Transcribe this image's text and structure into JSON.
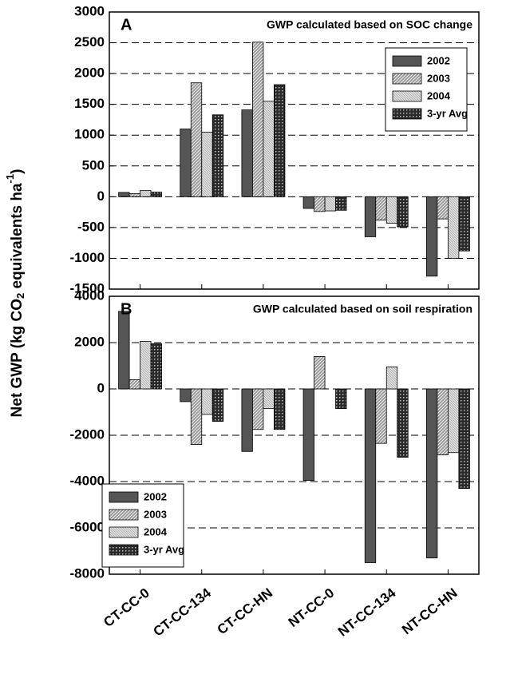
{
  "y_label": {
    "text1": "Net GWP (kg CO",
    "sub": "2",
    "text2": " equivalents ha",
    "sup": "-1",
    "text3": ")"
  },
  "chart_data": [
    {
      "type": "bar",
      "panel": "A",
      "title": "GWP calculated based on SOC change",
      "ylim": [
        -1500,
        3000
      ],
      "yticks": [
        -1500,
        -1000,
        -500,
        0,
        500,
        1000,
        1500,
        2000,
        2500,
        3000
      ],
      "grid": true,
      "legend": "upper right",
      "series": [
        {
          "name": "2002",
          "color": "#555555",
          "hatch": "solid",
          "values": [
            70,
            1100,
            1410,
            -190,
            -650,
            -1290
          ]
        },
        {
          "name": "2003",
          "color": "#9a9a9a",
          "hatch": "diag",
          "values": [
            50,
            1850,
            2510,
            -240,
            -380,
            -360
          ]
        },
        {
          "name": "2004",
          "color": "#b4b4b4",
          "hatch": "diag-fine",
          "values": [
            100,
            1050,
            1550,
            -230,
            -430,
            -1000
          ]
        },
        {
          "name": "3-yr Avg",
          "color": "#2a2a2a",
          "hatch": "dots",
          "values": [
            75,
            1330,
            1820,
            -220,
            -490,
            -880
          ]
        }
      ]
    },
    {
      "type": "bar",
      "panel": "B",
      "title": "GWP calculated based on soil respiration",
      "categories": [
        "CT-CC-0",
        "CT-CC-134",
        "CT-CC-HN",
        "NT-CC-0",
        "NT-CC-134",
        "NT-CC-HN"
      ],
      "ylim": [
        -8000,
        4000
      ],
      "yticks": [
        -8000,
        -6000,
        -4000,
        -2000,
        0,
        2000,
        4000
      ],
      "grid": true,
      "legend": "lower left",
      "series": [
        {
          "name": "2002",
          "color": "#555555",
          "hatch": "solid",
          "values": [
            3350,
            -550,
            -2700,
            -3950,
            -7500,
            -7300
          ]
        },
        {
          "name": "2003",
          "color": "#9a9a9a",
          "hatch": "diag",
          "values": [
            400,
            -2400,
            -1750,
            1400,
            -2350,
            -2850
          ]
        },
        {
          "name": "2004",
          "color": "#b4b4b4",
          "hatch": "diag-fine",
          "values": [
            2050,
            -1100,
            -850,
            null,
            950,
            -2750
          ]
        },
        {
          "name": "3-yr Avg",
          "color": "#2a2a2a",
          "hatch": "dots",
          "values": [
            1950,
            -1400,
            -1750,
            -850,
            -2950,
            -4300
          ]
        }
      ]
    }
  ]
}
